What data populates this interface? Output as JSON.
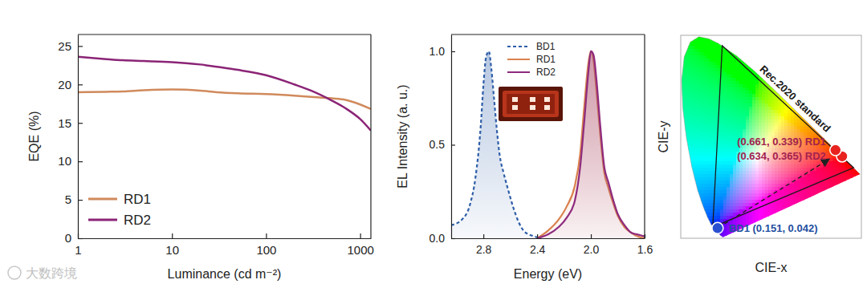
{
  "chart_data": [
    {
      "type": "line",
      "xlabel": "Luminance (cd m⁻²)",
      "ylabel": "EQE (%)",
      "log": "x",
      "xlim": [
        1,
        1300
      ],
      "ylim": [
        0,
        26.5
      ],
      "xticks": [
        1,
        10,
        100,
        1000
      ],
      "yticks": [
        0,
        5,
        10,
        15,
        20,
        25
      ],
      "legend": "lower left",
      "x": [
        1,
        2,
        3,
        5,
        10,
        20,
        30,
        50,
        100,
        200,
        300,
        500,
        700,
        1000,
        1300
      ],
      "series": [
        {
          "name": "RD1",
          "color": "#d08a5c",
          "values": [
            19.0,
            19.05,
            19.1,
            19.25,
            19.35,
            19.2,
            19.0,
            18.85,
            18.75,
            18.55,
            18.4,
            18.2,
            18.0,
            17.4,
            16.8
          ]
        },
        {
          "name": "RD2",
          "color": "#8b2476",
          "values": [
            23.6,
            23.3,
            23.15,
            23.05,
            22.9,
            22.6,
            22.3,
            21.9,
            21.2,
            20.0,
            19.2,
            17.9,
            16.9,
            15.5,
            14.0
          ]
        }
      ]
    },
    {
      "type": "area",
      "xlabel": "Energy (eV)",
      "ylabel": "EL Intensity (a. u.)",
      "xlim": [
        3.04,
        1.6
      ],
      "ylim": [
        0,
        1.09
      ],
      "xticks": [
        2.8,
        2.4,
        {
          "value": 2,
          "label": "2.0"
        },
        1.6
      ],
      "yticks": [
        {
          "value": 0,
          "label": "0.0"
        },
        0.5,
        {
          "value": 1,
          "label": "1.0"
        }
      ],
      "legend": "upper left",
      "series": [
        {
          "name": "BD1",
          "color": "#2e5ea8",
          "line_style": "dashed",
          "x": [
            3.04,
            2.96,
            2.9,
            2.86,
            2.82,
            2.8,
            2.78,
            2.76,
            2.74,
            2.72,
            2.7,
            2.68,
            2.65,
            2.62,
            2.58,
            2.54,
            2.5,
            2.46,
            2.42,
            2.38
          ],
          "values": [
            0.07,
            0.1,
            0.18,
            0.32,
            0.6,
            0.82,
            0.97,
            1.0,
            0.9,
            0.74,
            0.58,
            0.45,
            0.35,
            0.27,
            0.17,
            0.09,
            0.04,
            0.02,
            0.01,
            0.0
          ]
        },
        {
          "name": "RD1",
          "color": "#d9824f",
          "line_style": "solid",
          "x": [
            2.4,
            2.32,
            2.24,
            2.18,
            2.12,
            2.08,
            2.05,
            2.02,
            2.0,
            1.98,
            1.96,
            1.93,
            1.9,
            1.87,
            1.84,
            1.8,
            1.75,
            1.7,
            1.65,
            1.6
          ],
          "values": [
            0.0,
            0.04,
            0.1,
            0.17,
            0.28,
            0.45,
            0.7,
            0.93,
            1.0,
            0.95,
            0.8,
            0.55,
            0.35,
            0.27,
            0.2,
            0.12,
            0.06,
            0.03,
            0.01,
            0.0
          ]
        },
        {
          "name": "RD2",
          "color": "#8e2a7e",
          "line_style": "solid",
          "x": [
            2.4,
            2.32,
            2.24,
            2.18,
            2.12,
            2.08,
            2.05,
            2.02,
            2.0,
            1.98,
            1.96,
            1.93,
            1.9,
            1.87,
            1.84,
            1.8,
            1.75,
            1.7,
            1.65,
            1.6
          ],
          "values": [
            0.0,
            0.02,
            0.06,
            0.11,
            0.2,
            0.38,
            0.62,
            0.88,
            1.0,
            0.98,
            0.86,
            0.6,
            0.38,
            0.3,
            0.22,
            0.13,
            0.07,
            0.03,
            0.02,
            0.01
          ]
        }
      ]
    },
    {
      "type": "scatter",
      "xlabel": "CIE-x",
      "ylabel": "CIE-y",
      "tick_labels": false,
      "marker": "circle",
      "xlim": [
        0,
        0.74
      ],
      "ylim": [
        0,
        0.84
      ],
      "x": [
        0.661,
        0.634,
        0.151
      ],
      "y": [
        0.339,
        0.365,
        0.042
      ],
      "colors": [
        "#e8231f",
        "#e8231f",
        "#2a4fd0"
      ],
      "value_labels": [
        "(0.661, 0.339) RD1",
        "(0.634, 0.365) RD2",
        "BD1 (0.151, 0.042)"
      ],
      "rec2020": {
        "label": "Rec.2020 standard",
        "x": [
          0.708,
          0.17,
          0.131
        ],
        "y": [
          0.292,
          0.797,
          0.046
        ]
      },
      "spectral_locus": {
        "x": [
          0.1741,
          0.1714,
          0.1644,
          0.1566,
          0.144,
          0.1241,
          0.1096,
          0.0913,
          0.0687,
          0.0454,
          0.0235,
          0.0082,
          0.0039,
          0.0139,
          0.0389,
          0.0743,
          0.1142,
          0.1547,
          0.2296,
          0.3016,
          0.3731,
          0.4441,
          0.5125,
          0.5752,
          0.627,
          0.6915,
          0.726,
          0.7347
        ],
        "y": [
          0.005,
          0.0051,
          0.0109,
          0.0177,
          0.0297,
          0.0578,
          0.0868,
          0.1327,
          0.2007,
          0.295,
          0.4127,
          0.5384,
          0.6548,
          0.7502,
          0.812,
          0.8338,
          0.8262,
          0.8059,
          0.7543,
          0.6923,
          0.6245,
          0.5547,
          0.4866,
          0.4242,
          0.3725,
          0.3083,
          0.274,
          0.2653
        ]
      }
    }
  ],
  "watermark": "大数跨境"
}
